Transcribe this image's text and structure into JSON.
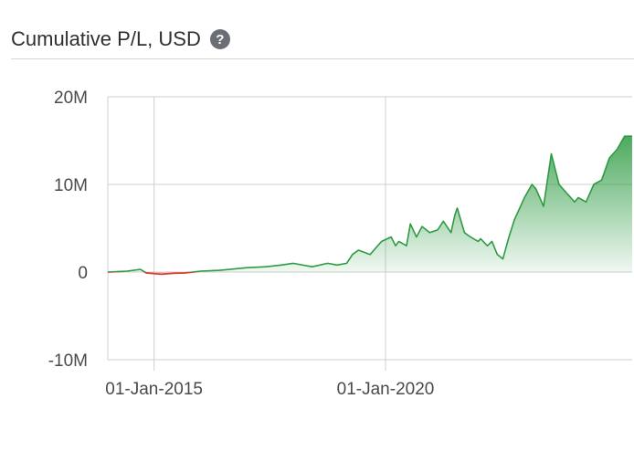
{
  "header": {
    "title": "Cumulative P/L, USD",
    "help_glyph": "?"
  },
  "colors": {
    "positive": "#2e9b43",
    "negative": "#d8412f",
    "grid": "#cfcfcf",
    "axis": "#9a9a9a"
  },
  "chart_data": {
    "type": "area",
    "title": "Cumulative P/L, USD",
    "xlabel": "",
    "ylabel": "",
    "xlim": [
      "2014-01-01",
      "2025-04-30"
    ],
    "ylim": [
      -10000000,
      20000000
    ],
    "y_ticks": [
      {
        "value": 20000000,
        "label": "20M"
      },
      {
        "value": 10000000,
        "label": "10M"
      },
      {
        "value": 0,
        "label": "0"
      },
      {
        "value": -10000000,
        "label": "-10M"
      }
    ],
    "x_ticks": [
      {
        "value": "2015-01-01",
        "label": "01-Jan-2015"
      },
      {
        "value": "2020-01-01",
        "label": "01-Jan-2020"
      }
    ],
    "grid": true,
    "series": [
      {
        "x": [
          "2014-01-01",
          "2014-06-01",
          "2014-09-15",
          "2014-11-01",
          "2015-03-01",
          "2015-06-01",
          "2015-09-01",
          "2016-01-01",
          "2016-06-01",
          "2017-01-01",
          "2017-06-01",
          "2017-10-01",
          "2018-01-01",
          "2018-06-01",
          "2018-10-01",
          "2018-12-15",
          "2019-03-01",
          "2019-04-15",
          "2019-06-01",
          "2019-09-01",
          "2019-12-01",
          "2020-02-15",
          "2020-03-20",
          "2020-04-15",
          "2020-06-15",
          "2020-07-15",
          "2020-09-01",
          "2020-10-15",
          "2020-12-15",
          "2021-02-15",
          "2021-04-01",
          "2021-06-01",
          "2021-07-01",
          "2021-07-20",
          "2021-09-15",
          "2021-11-01",
          "2022-01-01",
          "2022-01-20",
          "2022-03-15",
          "2022-04-20",
          "2022-06-01",
          "2022-07-15",
          "2022-09-01",
          "2022-10-15",
          "2023-01-01",
          "2023-03-01",
          "2023-04-01",
          "2023-06-01",
          "2023-08-01",
          "2023-10-01",
          "2023-12-01",
          "2024-02-01",
          "2024-03-01",
          "2024-05-01",
          "2024-07-01",
          "2024-09-01",
          "2024-11-01",
          "2025-01-01",
          "2025-03-01",
          "2025-04-30"
        ],
        "values": [
          0,
          100000,
          300000,
          -100000,
          -250000,
          -150000,
          -100000,
          100000,
          200000,
          500000,
          600000,
          800000,
          1000000,
          600000,
          1000000,
          800000,
          1000000,
          2000000,
          2500000,
          2000000,
          3500000,
          4000000,
          3000000,
          3500000,
          3000000,
          5500000,
          4000000,
          5200000,
          4500000,
          4800000,
          5800000,
          4500000,
          6500000,
          7300000,
          4500000,
          4000000,
          3500000,
          3800000,
          3000000,
          3500000,
          2000000,
          1500000,
          4000000,
          6000000,
          8500000,
          10000000,
          9500000,
          7500000,
          13500000,
          10000000,
          9000000,
          8000000,
          8500000,
          8000000,
          10000000,
          10500000,
          13000000,
          14000000,
          15500000,
          15500000
        ]
      }
    ]
  }
}
